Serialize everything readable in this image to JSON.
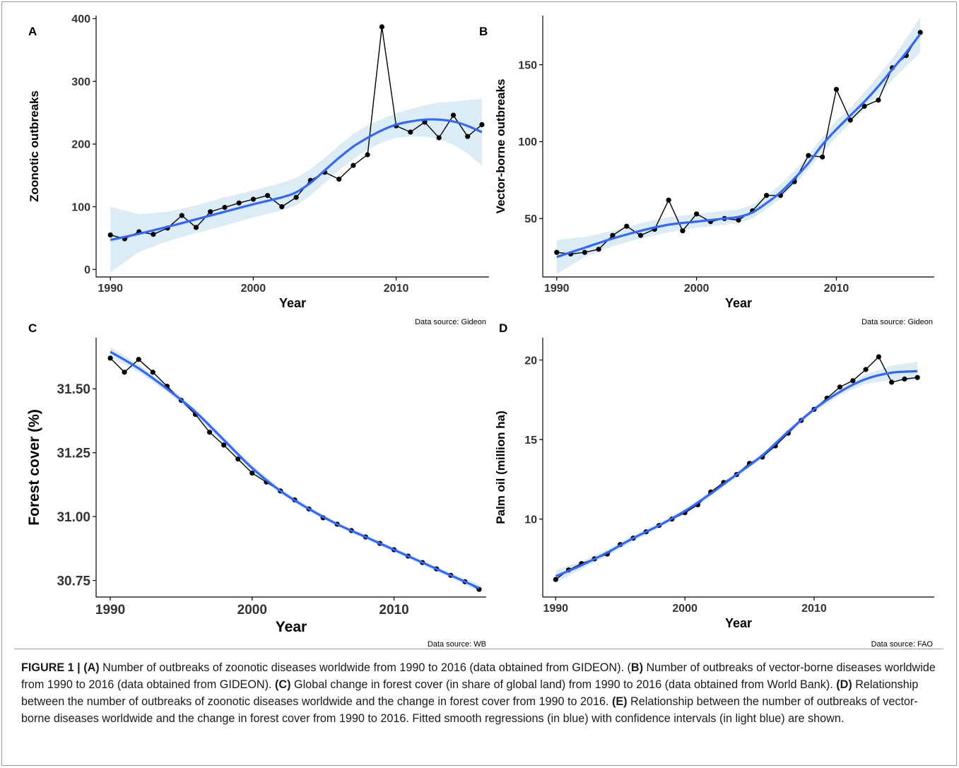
{
  "colors": {
    "fit_line": "#3366ff",
    "ci_band": "#dcecf4",
    "points": "#000000",
    "axis": "#000000"
  },
  "chart_data": [
    {
      "panel": "A",
      "type": "line",
      "xlabel": "Year",
      "ylabel": "Zoonotic outbreaks",
      "source": "Data source: Gideon",
      "xlim": [
        1989,
        2016.5
      ],
      "ylim": [
        -12,
        405
      ],
      "xticks": [
        1990,
        2000,
        2010
      ],
      "yticks": [
        0,
        100,
        200,
        300,
        400
      ],
      "ytick_labels": [
        "0",
        "100",
        "200",
        "300",
        "400"
      ],
      "x": [
        1990,
        1991,
        1992,
        1993,
        1994,
        1995,
        1996,
        1997,
        1998,
        1999,
        2000,
        2001,
        2002,
        2003,
        2004,
        2005,
        2006,
        2007,
        2008,
        2009,
        2010,
        2011,
        2012,
        2013,
        2014,
        2015,
        2016
      ],
      "y": [
        55,
        49,
        60,
        56,
        66,
        86,
        67,
        92,
        99,
        106,
        112,
        118,
        100,
        115,
        142,
        155,
        144,
        166,
        183,
        387,
        229,
        219,
        235,
        210,
        246,
        212,
        231
      ],
      "fit_x": [
        1990,
        1992,
        1994,
        1996,
        1998,
        2000,
        2002,
        2003,
        2004,
        2005,
        2006,
        2007,
        2008,
        2009,
        2010,
        2011,
        2012,
        2013,
        2014,
        2015,
        2016
      ],
      "fit": [
        47,
        57,
        68,
        80,
        92,
        104,
        115,
        123,
        138,
        158,
        178,
        196,
        210,
        222,
        231,
        236,
        239,
        239,
        236,
        229,
        219
      ],
      "ci_low": [
        -5,
        28,
        45,
        58,
        70,
        83,
        94,
        102,
        118,
        138,
        158,
        176,
        191,
        202,
        210,
        212,
        212,
        208,
        199,
        185,
        165
      ],
      "ci_high": [
        100,
        88,
        92,
        102,
        115,
        126,
        138,
        146,
        160,
        178,
        198,
        216,
        230,
        240,
        249,
        256,
        262,
        266,
        268,
        270,
        272
      ]
    },
    {
      "panel": "B",
      "type": "line",
      "xlabel": "Year",
      "ylabel": "Vector-borne outbreaks",
      "source": "Data source: Gideon",
      "xlim": [
        1989,
        2017
      ],
      "ylim": [
        12,
        182
      ],
      "xticks": [
        1990,
        2000,
        2010
      ],
      "yticks": [
        50,
        100,
        150
      ],
      "ytick_labels": [
        "50",
        "100",
        "150"
      ],
      "x": [
        1990,
        1991,
        1992,
        1993,
        1994,
        1995,
        1996,
        1997,
        1998,
        1999,
        2000,
        2001,
        2002,
        2003,
        2004,
        2005,
        2006,
        2007,
        2008,
        2009,
        2010,
        2011,
        2012,
        2013,
        2014,
        2015,
        2016
      ],
      "y": [
        28,
        27,
        28,
        30,
        39,
        45,
        39,
        43,
        62,
        42,
        53,
        48,
        50,
        49,
        55,
        65,
        65,
        74,
        91,
        90,
        134,
        114,
        123,
        127,
        148,
        156,
        171
      ],
      "fit_x": [
        1990,
        1992,
        1994,
        1996,
        1998,
        2000,
        2002,
        2003,
        2004,
        2005,
        2006,
        2007,
        2008,
        2009,
        2010,
        2011,
        2012,
        2013,
        2014,
        2015,
        2016
      ],
      "fit": [
        25,
        31,
        37,
        42,
        46,
        48,
        50,
        51,
        54,
        60,
        67,
        76,
        86,
        98,
        108,
        117,
        126,
        136,
        147,
        158,
        170
      ],
      "ci_low": [
        14,
        25,
        32,
        37,
        41,
        44,
        46,
        47,
        50,
        56,
        63,
        72,
        82,
        93,
        103,
        112,
        121,
        130,
        140,
        149,
        158
      ],
      "ci_high": [
        36,
        38,
        42,
        47,
        51,
        53,
        55,
        56,
        59,
        65,
        72,
        81,
        91,
        103,
        114,
        122,
        132,
        143,
        154,
        167,
        181
      ]
    },
    {
      "panel": "C",
      "type": "line",
      "xlabel": "Year",
      "ylabel": "Forest cover (%)",
      "source": "Data source: WB",
      "xlim": [
        1989,
        2016.5
      ],
      "ylim": [
        30.685,
        31.7
      ],
      "xticks": [
        1990,
        2000,
        2010
      ],
      "yticks": [
        30.75,
        31.0,
        31.25,
        31.5
      ],
      "ytick_labels": [
        "30.75",
        "31.00",
        "31.25",
        "31.50"
      ],
      "x": [
        1990,
        1991,
        1992,
        1993,
        1994,
        1995,
        1996,
        1997,
        1998,
        1999,
        2000,
        2001,
        2002,
        2003,
        2004,
        2005,
        2006,
        2007,
        2008,
        2009,
        2010,
        2011,
        2012,
        2013,
        2014,
        2015,
        2016
      ],
      "y": [
        31.62,
        31.565,
        31.615,
        31.565,
        31.51,
        31.455,
        31.4,
        31.33,
        31.28,
        31.225,
        31.17,
        31.135,
        31.1,
        31.065,
        31.03,
        30.995,
        30.97,
        30.945,
        30.92,
        30.895,
        30.87,
        30.845,
        30.82,
        30.795,
        30.77,
        30.745,
        30.715
      ],
      "fit_x": [
        1990,
        1992,
        1994,
        1996,
        1998,
        2000,
        2002,
        2004,
        2006,
        2008,
        2010,
        2012,
        2014,
        2016
      ],
      "fit": [
        31.645,
        31.58,
        31.5,
        31.41,
        31.3,
        31.19,
        31.1,
        31.03,
        30.97,
        30.92,
        30.87,
        30.82,
        30.77,
        30.72
      ],
      "ci_low": [
        31.625,
        31.565,
        31.487,
        31.397,
        31.288,
        31.178,
        31.09,
        31.021,
        30.962,
        30.912,
        30.862,
        30.811,
        30.76,
        30.705
      ],
      "ci_high": [
        31.665,
        31.595,
        31.513,
        31.423,
        31.312,
        31.202,
        31.11,
        31.039,
        30.978,
        30.928,
        30.878,
        30.829,
        30.78,
        30.735
      ]
    },
    {
      "panel": "D",
      "type": "line",
      "xlabel": "Year",
      "ylabel": "Palm oil (million ha)",
      "source": "Data source: FAO",
      "xlim": [
        1989,
        2019.3
      ],
      "ylim": [
        5.1,
        21.4
      ],
      "xticks": [
        1990,
        2000,
        2010
      ],
      "yticks": [
        10,
        15,
        20
      ],
      "ytick_labels": [
        "10",
        "15",
        "20"
      ],
      "x": [
        1990,
        1991,
        1992,
        1993,
        1994,
        1995,
        1996,
        1997,
        1998,
        1999,
        2000,
        2001,
        2002,
        2003,
        2004,
        2005,
        2006,
        2007,
        2008,
        2009,
        2010,
        2011,
        2012,
        2013,
        2014,
        2015,
        2016,
        2017,
        2018
      ],
      "y": [
        6.2,
        6.8,
        7.2,
        7.5,
        7.8,
        8.4,
        8.8,
        9.2,
        9.6,
        10.0,
        10.4,
        10.9,
        11.7,
        12.3,
        12.8,
        13.5,
        13.9,
        14.6,
        15.4,
        16.2,
        16.9,
        17.6,
        18.3,
        18.7,
        19.4,
        20.2,
        18.6,
        18.8,
        18.9
      ],
      "fit_x": [
        1990,
        1992,
        1994,
        1996,
        1998,
        2000,
        2002,
        2004,
        2006,
        2008,
        2010,
        2012,
        2014,
        2016,
        2018
      ],
      "fit": [
        6.4,
        7.1,
        7.9,
        8.8,
        9.6,
        10.5,
        11.6,
        12.8,
        14.0,
        15.5,
        16.9,
        18.0,
        18.8,
        19.2,
        19.3
      ],
      "ci_low": [
        6.0,
        6.85,
        7.7,
        8.6,
        9.45,
        10.35,
        11.45,
        12.65,
        13.85,
        15.35,
        16.75,
        17.8,
        18.5,
        18.75,
        18.7
      ],
      "ci_high": [
        6.8,
        7.35,
        8.1,
        9.0,
        9.75,
        10.65,
        11.75,
        12.95,
        14.15,
        15.65,
        17.05,
        18.2,
        19.1,
        19.65,
        19.9
      ]
    }
  ],
  "caption": {
    "figure_label": "FIGURE 1 |",
    "parts": [
      {
        "label": "(A)",
        "text": " Number of outbreaks of zoonotic diseases worldwide from 1990 to 2016 (data obtained from GIDEON). ("
      },
      {
        "label": "B)",
        "text": " Number of outbreaks of vector-borne diseases worldwide from 1990 to 2016 (data obtained from GIDEON). "
      },
      {
        "label": "(C)",
        "text": " Global change in forest cover (in share of global land) from 1990 to 2016 (data obtained from World Bank). "
      },
      {
        "label": "(D)",
        "text": " Relationship between the number of outbreaks of zoonotic diseases worldwide and the change in forest cover from 1990 to 2016. "
      },
      {
        "label": "(E)",
        "text": " Relationship between the number of outbreaks of vector-borne diseases worldwide and the change in forest cover from 1990 to 2016. Fitted smooth regressions (in blue) with confidence intervals (in light blue) are shown."
      }
    ]
  }
}
